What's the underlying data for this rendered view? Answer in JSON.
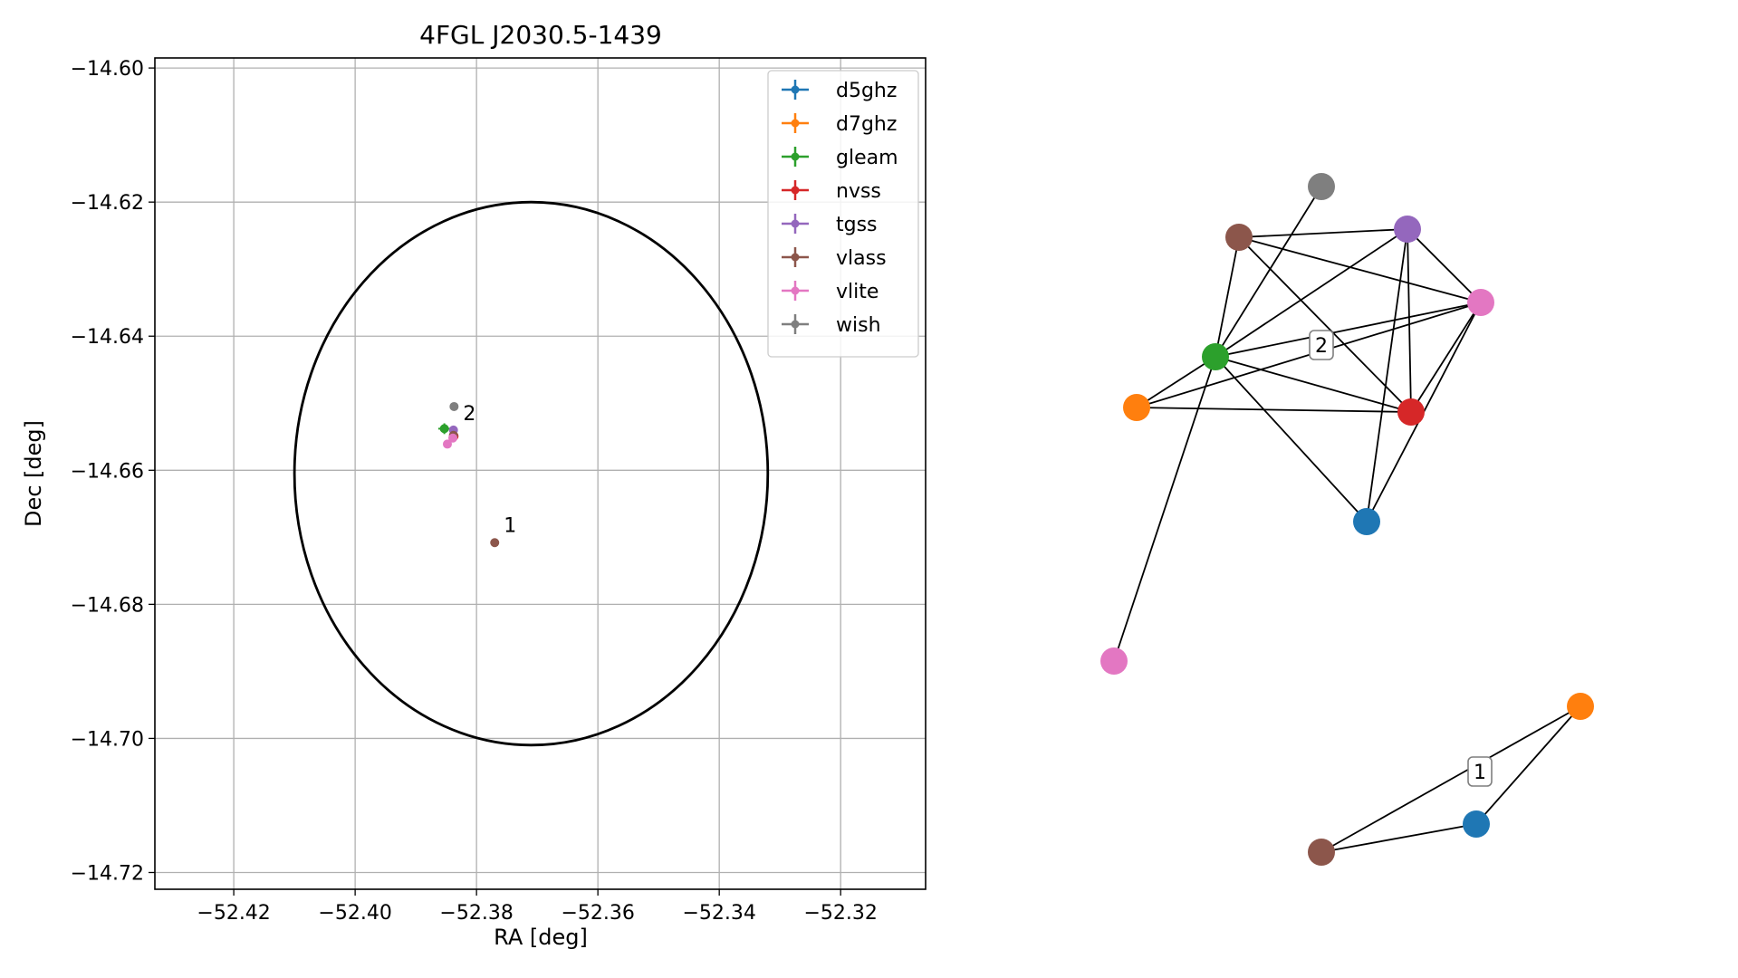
{
  "chart_data": [
    {
      "type": "scatter",
      "title": "4FGL J2030.5-1439",
      "xlabel": "RA [deg]",
      "ylabel": "Dec [deg]",
      "xlim": [
        -52.433,
        -52.306
      ],
      "ylim": [
        -14.7225,
        -14.5985
      ],
      "xticks": [
        -52.42,
        -52.4,
        -52.38,
        -52.36,
        -52.34,
        -52.32
      ],
      "xtick_labels": [
        "−52.42",
        "−52.40",
        "−52.38",
        "−52.36",
        "−52.34",
        "−52.32"
      ],
      "yticks": [
        -14.6,
        -14.62,
        -14.64,
        -14.66,
        -14.68,
        -14.7,
        -14.72
      ],
      "ytick_labels": [
        "−14.60",
        "−14.62",
        "−14.64",
        "−14.66",
        "−14.68",
        "−14.70",
        "−14.72"
      ],
      "grid": true,
      "legend_position": "upper right",
      "ellipse": {
        "center": [
          -52.371,
          -14.6605
        ],
        "semi_axis_ra": 0.039,
        "semi_axis_dec": 0.0405
      },
      "series": [
        {
          "name": "d5ghz",
          "color": "#1f77b4",
          "points": []
        },
        {
          "name": "d7ghz",
          "color": "#ff7f0e",
          "points": []
        },
        {
          "name": "gleam",
          "color": "#2ca02c",
          "points": [
            {
              "x": -52.3853,
              "y": -14.6538,
              "xerr": 0.001,
              "yerr": 0.0008
            }
          ]
        },
        {
          "name": "nvss",
          "color": "#d62728",
          "points": [
            {
              "x": -52.3837,
              "y": -14.6549
            }
          ]
        },
        {
          "name": "tgss",
          "color": "#9467bd",
          "points": [
            {
              "x": -52.3838,
              "y": -14.654
            }
          ]
        },
        {
          "name": "vlass",
          "color": "#8c564b",
          "points": [
            {
              "x": -52.377,
              "y": -14.6708
            },
            {
              "x": -52.3838,
              "y": -14.6548
            }
          ]
        },
        {
          "name": "vlite",
          "color": "#e377c2",
          "points": [
            {
              "x": -52.3848,
              "y": -14.6561
            },
            {
              "x": -52.3839,
              "y": -14.6552
            }
          ]
        },
        {
          "name": "wish",
          "color": "#7f7f7f",
          "points": [
            {
              "x": -52.3837,
              "y": -14.6505
            }
          ]
        }
      ],
      "annotations": [
        {
          "text": "2",
          "x": -52.3822,
          "y": -14.6525
        },
        {
          "text": "1",
          "x": -52.3755,
          "y": -14.6692
        }
      ]
    },
    {
      "type": "network",
      "groups": [
        {
          "label": "2",
          "nodes": [
            {
              "id": "wish",
              "color": "#7f7f7f"
            },
            {
              "id": "vlass",
              "color": "#8c564b"
            },
            {
              "id": "tgss",
              "color": "#9467bd"
            },
            {
              "id": "vlite",
              "color": "#e377c2"
            },
            {
              "id": "gleam",
              "color": "#2ca02c"
            },
            {
              "id": "d7ghz",
              "color": "#ff7f0e"
            },
            {
              "id": "nvss",
              "color": "#d62728"
            },
            {
              "id": "d5ghz",
              "color": "#1f77b4"
            },
            {
              "id": "vlite_b",
              "color": "#e377c2"
            }
          ],
          "edges": [
            [
              "wish",
              "gleam"
            ],
            [
              "vlass",
              "tgss"
            ],
            [
              "vlass",
              "vlite"
            ],
            [
              "vlass",
              "gleam"
            ],
            [
              "vlass",
              "nvss"
            ],
            [
              "tgss",
              "gleam"
            ],
            [
              "tgss",
              "vlite"
            ],
            [
              "tgss",
              "nvss"
            ],
            [
              "tgss",
              "d5ghz"
            ],
            [
              "vlite",
              "gleam"
            ],
            [
              "vlite",
              "d7ghz"
            ],
            [
              "vlite",
              "nvss"
            ],
            [
              "vlite",
              "d5ghz"
            ],
            [
              "gleam",
              "d7ghz"
            ],
            [
              "gleam",
              "nvss"
            ],
            [
              "gleam",
              "d5ghz"
            ],
            [
              "d7ghz",
              "nvss"
            ],
            [
              "gleam",
              "vlite_b"
            ]
          ]
        },
        {
          "label": "1",
          "nodes": [
            {
              "id": "d7ghz",
              "color": "#ff7f0e"
            },
            {
              "id": "d5ghz",
              "color": "#1f77b4"
            },
            {
              "id": "vlass",
              "color": "#8c564b"
            }
          ],
          "edges": [
            [
              "d7ghz",
              "d5ghz"
            ],
            [
              "d7ghz",
              "vlass"
            ],
            [
              "d5ghz",
              "vlass"
            ]
          ]
        }
      ]
    }
  ]
}
